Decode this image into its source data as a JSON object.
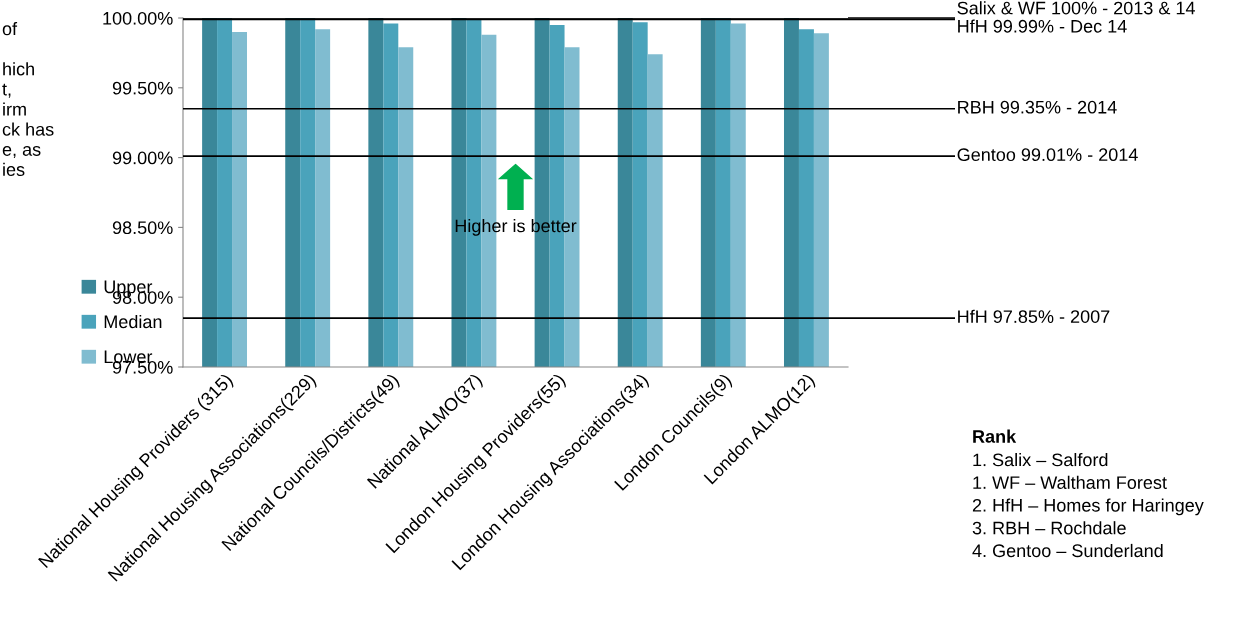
{
  "chart_data": {
    "type": "bar",
    "categories": [
      "National Housing Providers (315)",
      "National Housing Associations(229)",
      "National Councils/Districts(49)",
      "National ALMO(37)",
      "London Housing Providers(55)",
      "London Housing Associations(34)",
      "London Councils(9)",
      "London ALMO(12)"
    ],
    "series": [
      {
        "name": "Upper",
        "color": "#3a8799",
        "values": [
          100,
          100,
          100,
          100,
          100,
          100,
          100,
          100
        ]
      },
      {
        "name": "Median",
        "color": "#4aa3bb",
        "values": [
          100,
          100,
          99.96,
          99.99,
          99.95,
          99.97,
          100,
          99.92
        ]
      },
      {
        "name": "Lower",
        "color": "#80bcd0",
        "values": [
          99.9,
          99.92,
          99.79,
          99.88,
          99.79,
          99.74,
          99.96,
          99.89
        ]
      }
    ],
    "ylim": [
      97.5,
      100
    ],
    "yticks": [
      {
        "value": 97.5,
        "label": "97.50%"
      },
      {
        "value": 98,
        "label": "98.00%"
      },
      {
        "value": 98.5,
        "label": "98.50%"
      },
      {
        "value": 99,
        "label": "99.00%"
      },
      {
        "value": 99.5,
        "label": "99.50%"
      },
      {
        "value": 100,
        "label": "100.00%"
      }
    ],
    "ref_lines": [
      {
        "axis": "y",
        "value": 100,
        "label": "Salix & WF 100% - 2013 & 14",
        "color": "#000000"
      },
      {
        "axis": "y",
        "value": 99.99,
        "label": "HfH 99.99% - Dec 14",
        "color": "#000000"
      },
      {
        "axis": "y",
        "value": 99.35,
        "label": "RBH 99.35% - 2014",
        "color": "#000000"
      },
      {
        "axis": "y",
        "value": 99.01,
        "label": "Gentoo 99.01% - 2014",
        "color": "#000000"
      },
      {
        "axis": "y",
        "value": 97.85,
        "label": "HfH 97.85% - 2007",
        "color": "#000000"
      }
    ],
    "annotations": [
      {
        "text": "Higher is better",
        "x": "London Housing Providers(55)",
        "y": 98.5
      },
      "of\n\nhich\nt,\nirm\nck has\ne, as\nies",
      "Rank",
      "1. Salix – Salford\n1. WF – Waltham Forest\n2. HfH – Homes for Haringey\n3. RBH – Rochdale\n4. Gentoo – Sunderland"
    ],
    "legend": "left",
    "grid": false
  }
}
